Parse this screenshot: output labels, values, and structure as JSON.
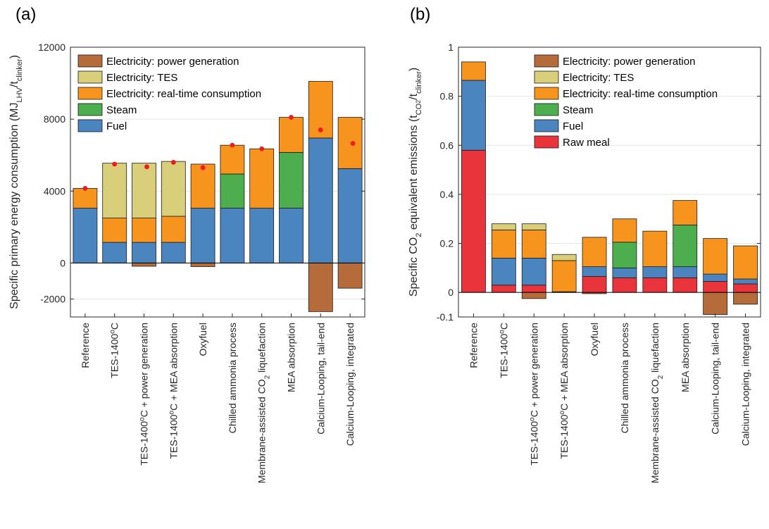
{
  "chart_data": [
    {
      "type": "bar",
      "panel": "(a)",
      "ylabel": {
        "main": "Specific primary energy consumption (MJ",
        "sub1": "LHV",
        "mid": "/t",
        "sub2": "clinker",
        "end": ")"
      },
      "ylim": [
        -3000,
        12000
      ],
      "yticks": [
        -2000,
        0,
        4000,
        8000,
        12000
      ],
      "ytick_labels": [
        "-2000",
        "0",
        "4000",
        "8000",
        "12000"
      ],
      "grid": true,
      "legend": "top-left",
      "categories": [
        {
          "label": "Reference"
        },
        {
          "label": "TES-1400",
          "sup": "o",
          "after": "C"
        },
        {
          "label": "TES-1400",
          "sup": "o",
          "after": "C + power generation"
        },
        {
          "label": "TES-1400",
          "sup": "o",
          "after": "C + MEA absorption"
        },
        {
          "label": "Oxyfuel"
        },
        {
          "label": "Chilled ammonia process"
        },
        {
          "label": "Membrane-assisted CO",
          "sub": "2",
          "after": " liquefaction"
        },
        {
          "label": "MEA absorption"
        },
        {
          "label": "Calcium-Looping, tail-end"
        },
        {
          "label": "Calcium-Looping, integrated"
        }
      ],
      "series": [
        {
          "name": "Fuel",
          "color": "#4a85bf",
          "values": [
            3050,
            1150,
            1150,
            1150,
            3050,
            3050,
            3050,
            3050,
            6950,
            5250
          ]
        },
        {
          "name": "Steam",
          "color": "#4cae4c",
          "values": [
            0,
            0,
            0,
            0,
            0,
            1900,
            0,
            3100,
            0,
            0
          ]
        },
        {
          "name": "Electricity: real-time consumption",
          "color": "#f7941d",
          "values": [
            1100,
            1350,
            1350,
            1450,
            2450,
            1600,
            3300,
            1950,
            3150,
            2850
          ]
        },
        {
          "name": "Electricity: TES",
          "color": "#d9cf7a",
          "values": [
            0,
            3050,
            3050,
            3050,
            0,
            0,
            0,
            0,
            0,
            0
          ]
        },
        {
          "name": "Electricity: power generation",
          "color": "#b66c3a",
          "values": [
            0,
            0,
            -180,
            0,
            -200,
            0,
            0,
            0,
            -2700,
            -1400
          ]
        }
      ],
      "markers": {
        "name": "red dots",
        "color": "#ee1c1c",
        "values": [
          4150,
          5500,
          5350,
          5600,
          5300,
          6550,
          6350,
          8100,
          7400,
          6650
        ]
      },
      "legend_order": [
        "Electricity: power generation",
        "Electricity: TES",
        "Electricity: real-time consumption",
        "Steam",
        "Fuel"
      ]
    },
    {
      "type": "bar",
      "panel": "(b)",
      "ylabel": {
        "main": "Specific CO",
        "sub1": "2",
        "mid": " equivalent emissions (t",
        "sub2": "CO",
        "sub3": "2",
        "mid2": "/t",
        "sub4": "clinker",
        "end": ")"
      },
      "ylim": [
        -0.1,
        1.0
      ],
      "yticks": [
        -0.1,
        0,
        0.2,
        0.4,
        0.6,
        0.8,
        1.0
      ],
      "ytick_labels": [
        "-0.1",
        "0",
        "0.2",
        "0.4",
        "0.6",
        "0.8",
        "1"
      ],
      "grid": true,
      "legend": "top-right",
      "categories": [
        {
          "label": "Reference"
        },
        {
          "label": "TES-1400",
          "sup": "o",
          "after": "C"
        },
        {
          "label": "TES-1400",
          "sup": "o",
          "after": "C + power generation"
        },
        {
          "label": "TES-1400",
          "sup": "o",
          "after": "C + MEA absorption"
        },
        {
          "label": "Oxyfuel"
        },
        {
          "label": "Chilled ammonia process"
        },
        {
          "label": "Membrane-assisted CO",
          "sub": "2",
          "after": " liquefaction"
        },
        {
          "label": "MEA absorption"
        },
        {
          "label": "Calcium-Looping, tail-end"
        },
        {
          "label": "Calcium-Looping, integrated"
        }
      ],
      "series": [
        {
          "name": "Raw meal",
          "color": "#e8343a",
          "values": [
            0.58,
            0.03,
            0.03,
            0.002,
            0.065,
            0.06,
            0.06,
            0.06,
            0.045,
            0.035
          ]
        },
        {
          "name": "Fuel",
          "color": "#4a85bf",
          "values": [
            0.285,
            0.11,
            0.11,
            0.001,
            0.04,
            0.04,
            0.045,
            0.045,
            0.03,
            0.02
          ]
        },
        {
          "name": "Steam",
          "color": "#4cae4c",
          "values": [
            0,
            0,
            0,
            0,
            0,
            0.105,
            0,
            0.17,
            0,
            0
          ]
        },
        {
          "name": "Electricity: real-time consumption",
          "color": "#f7941d",
          "values": [
            0.075,
            0.115,
            0.115,
            0.127,
            0.12,
            0.095,
            0.145,
            0.1,
            0.145,
            0.135
          ]
        },
        {
          "name": "Electricity: TES",
          "color": "#d9cf7a",
          "values": [
            0,
            0.025,
            0.025,
            0.025,
            0,
            0,
            0,
            0,
            0,
            0
          ]
        },
        {
          "name": "Electricity: power generation",
          "color": "#b66c3a",
          "values": [
            0,
            0,
            -0.025,
            0,
            -0.005,
            0,
            0,
            0,
            -0.09,
            -0.048
          ]
        }
      ],
      "legend_order": [
        "Electricity: power generation",
        "Electricity: TES",
        "Electricity: real-time consumption",
        "Steam",
        "Fuel",
        "Raw meal"
      ]
    }
  ]
}
